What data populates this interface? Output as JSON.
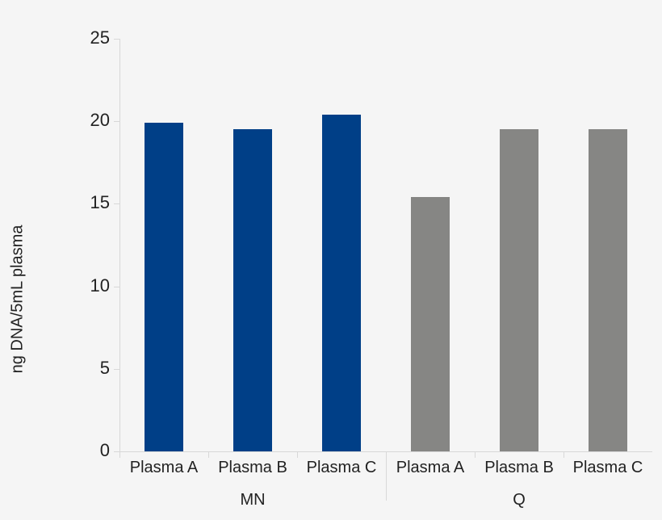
{
  "chart_data": {
    "type": "bar",
    "title": "",
    "xlabel": "",
    "ylabel": "ng DNA/5mL plasma",
    "ylim": [
      0,
      25
    ],
    "yticks": [
      0,
      5,
      10,
      15,
      20,
      25
    ],
    "grid": false,
    "legend": null,
    "groups": [
      {
        "name": "MN",
        "color": "#003f87",
        "categories": [
          "Plasma A",
          "Plasma B",
          "Plasma C"
        ],
        "values": [
          19.9,
          19.5,
          20.4
        ]
      },
      {
        "name": "Q",
        "color": "#868684",
        "categories": [
          "Plasma A",
          "Plasma B",
          "Plasma C"
        ],
        "values": [
          15.4,
          19.5,
          19.5
        ]
      }
    ]
  }
}
